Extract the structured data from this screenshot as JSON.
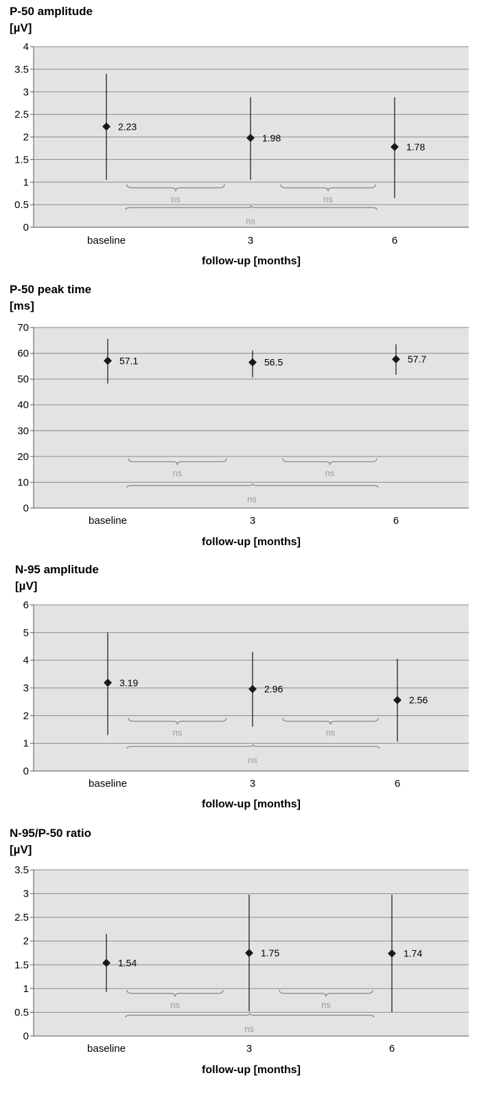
{
  "chart_data": [
    {
      "type": "scatter",
      "title": "P-50 amplitude",
      "ylabel": "[µV]",
      "xlabel": "follow-up [months]",
      "categories": [
        "baseline",
        "3",
        "6"
      ],
      "ylim": [
        0,
        4
      ],
      "yticks": [
        "0",
        "0.5",
        "1",
        "1.5",
        "2",
        "2.5",
        "3",
        "3.5",
        "4"
      ],
      "tick_values": [
        0,
        0.5,
        1,
        1.5,
        2,
        2.5,
        3,
        3.5,
        4
      ],
      "values": [
        2.23,
        1.98,
        1.78
      ],
      "value_labels": [
        "2.23",
        "1.98",
        "1.78"
      ],
      "err_low": [
        1.05,
        1.05,
        0.65
      ],
      "err_high": [
        3.4,
        2.88,
        2.88
      ],
      "ns_small": 0.95,
      "ns_big": 0.48,
      "comparisons": [
        "ns",
        "ns",
        "ns"
      ],
      "grid": true
    },
    {
      "type": "scatter",
      "title": "P-50 peak time",
      "ylabel": "[ms]",
      "xlabel": "follow-up [months]",
      "categories": [
        "baseline",
        "3",
        "6"
      ],
      "ylim": [
        0,
        70
      ],
      "yticks": [
        "0",
        "10",
        "20",
        "30",
        "40",
        "50",
        "60",
        "70"
      ],
      "tick_values": [
        0,
        10,
        20,
        30,
        40,
        50,
        60,
        70
      ],
      "values": [
        57.1,
        56.5,
        57.7
      ],
      "value_labels": [
        "57.1",
        "56.5",
        "57.7"
      ],
      "err_low": [
        48.3,
        50.7,
        51.7
      ],
      "err_high": [
        65.6,
        61.1,
        63.5
      ],
      "ns_small": 19.3,
      "ns_big": 9.5,
      "comparisons": [
        "ns",
        "ns",
        "ns"
      ],
      "grid": true
    },
    {
      "type": "scatter",
      "title": "N-95 amplitude",
      "ylabel": "[µV]",
      "xlabel": "follow-up [months]",
      "categories": [
        "baseline",
        "3",
        "6"
      ],
      "ylim": [
        0,
        6
      ],
      "yticks": [
        "0",
        "1",
        "2",
        "3",
        "4",
        "5",
        "6"
      ],
      "tick_values": [
        0,
        1,
        2,
        3,
        4,
        5,
        6
      ],
      "values": [
        3.19,
        2.96,
        2.56
      ],
      "value_labels": [
        "3.19",
        "2.96",
        "2.56"
      ],
      "err_low": [
        1.3,
        1.6,
        1.07
      ],
      "err_high": [
        5.0,
        4.3,
        4.05
      ],
      "ns_small": 1.92,
      "ns_big": 0.96,
      "comparisons": [
        "ns",
        "ns",
        "ns"
      ],
      "grid": true
    },
    {
      "type": "scatter",
      "title": "N-95/P-50 ratio",
      "ylabel": "[µV]",
      "xlabel": "follow-up [months]",
      "categories": [
        "baseline",
        "3",
        "6"
      ],
      "ylim": [
        0,
        3.5
      ],
      "yticks": [
        "0",
        "0.5",
        "1",
        "1.5",
        "2",
        "2.5",
        "3",
        "3.5"
      ],
      "tick_values": [
        0,
        0.5,
        1,
        1.5,
        2,
        2.5,
        3,
        3.5
      ],
      "values": [
        1.54,
        1.75,
        1.74
      ],
      "value_labels": [
        "1.54",
        "1.75",
        "1.74"
      ],
      "err_low": [
        0.93,
        0.52,
        0.5
      ],
      "err_high": [
        2.15,
        2.98,
        2.98
      ],
      "ns_small": 0.97,
      "ns_big": 0.48,
      "comparisons": [
        "ns",
        "ns",
        "ns"
      ],
      "grid": true
    }
  ],
  "colors": {
    "plot_bg": "#e3e3e3",
    "grid": "#8a8a8a",
    "marker": "#1a1a1a",
    "ns_brace": "#8c8c8c",
    "ns_text": "#9a9a9a"
  }
}
